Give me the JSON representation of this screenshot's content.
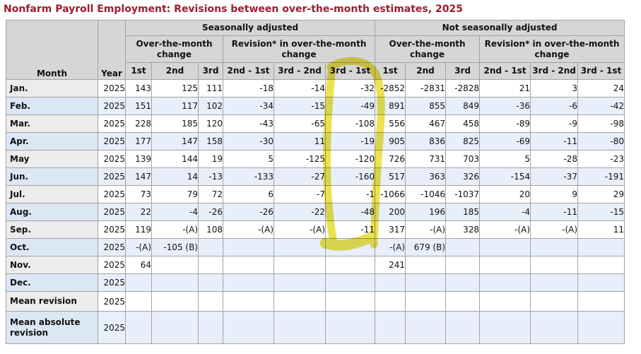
{
  "title": "Nonfarm Payroll Employment: Revisions between over-the-month estimates, 2025",
  "colors": {
    "title_text": "#9e1b32",
    "header_bg": "#d6d6d6",
    "stripe_blue": "#e8effb",
    "stripe_blue_label": "#dce7f6",
    "stripe_grey_label": "#ececec",
    "border": "#a2a2a2",
    "highlight_yellow": "#e7da25"
  },
  "table": {
    "group_headers": [
      {
        "label": "Seasonally adjusted"
      },
      {
        "label": "Not seasonally adjusted"
      }
    ],
    "subgroup_headers": [
      "Over-the-month change",
      "Revision* in over-the-month change",
      "Over-the-month change",
      "Revision* in over-the-month change"
    ],
    "column_headers": {
      "month": "Month",
      "year": "Year",
      "estimates": [
        "1st",
        "2nd",
        "3rd",
        "2nd - 1st",
        "3rd - 2nd",
        "3rd - 1st",
        "1st",
        "2nd",
        "3rd",
        "2nd - 1st",
        "3rd - 2nd",
        "3rd - 1st"
      ]
    },
    "rows": [
      {
        "month": "Jan.",
        "year": "2025",
        "values": [
          "143",
          "125",
          "111",
          "-18",
          "-14",
          "-32",
          "-2852",
          "-2831",
          "-2828",
          "21",
          "3",
          "24"
        ]
      },
      {
        "month": "Feb.",
        "year": "2025",
        "values": [
          "151",
          "117",
          "102",
          "-34",
          "-15",
          "-49",
          "891",
          "855",
          "849",
          "-36",
          "-6",
          "-42"
        ]
      },
      {
        "month": "Mar.",
        "year": "2025",
        "values": [
          "228",
          "185",
          "120",
          "-43",
          "-65",
          "-108",
          "556",
          "467",
          "458",
          "-89",
          "-9",
          "-98"
        ]
      },
      {
        "month": "Apr.",
        "year": "2025",
        "values": [
          "177",
          "147",
          "158",
          "-30",
          "11",
          "-19",
          "905",
          "836",
          "825",
          "-69",
          "-11",
          "-80"
        ]
      },
      {
        "month": "May",
        "year": "2025",
        "values": [
          "139",
          "144",
          "19",
          "5",
          "-125",
          "-120",
          "726",
          "731",
          "703",
          "5",
          "-28",
          "-23"
        ]
      },
      {
        "month": "Jun.",
        "year": "2025",
        "values": [
          "147",
          "14",
          "-13",
          "-133",
          "-27",
          "-160",
          "517",
          "363",
          "326",
          "-154",
          "-37",
          "-191"
        ]
      },
      {
        "month": "Jul.",
        "year": "2025",
        "values": [
          "73",
          "79",
          "72",
          "6",
          "-7",
          "-1",
          "-1066",
          "-1046",
          "-1037",
          "20",
          "9",
          "29"
        ]
      },
      {
        "month": "Aug.",
        "year": "2025",
        "values": [
          "22",
          "-4",
          "-26",
          "-26",
          "-22",
          "-48",
          "200",
          "196",
          "185",
          "-4",
          "-11",
          "-15"
        ]
      },
      {
        "month": "Sep.",
        "year": "2025",
        "values": [
          "119",
          "-(A)",
          "108",
          "-(A)",
          "-(A)",
          "-11",
          "317",
          "-(A)",
          "328",
          "-(A)",
          "-(A)",
          "11"
        ]
      },
      {
        "month": "Oct.",
        "year": "2025",
        "values": [
          "-(A)",
          "-105 (B)",
          "",
          "",
          "",
          "",
          "-(A)",
          "679 (B)",
          "",
          "",
          "",
          ""
        ]
      },
      {
        "month": "Nov.",
        "year": "2025",
        "values": [
          "64",
          "",
          "",
          "",
          "",
          "",
          "241",
          "",
          "",
          "",
          "",
          ""
        ]
      },
      {
        "month": "Dec.",
        "year": "2025",
        "values": [
          "",
          "",
          "",
          "",
          "",
          "",
          "",
          "",
          "",
          "",
          "",
          ""
        ]
      },
      {
        "month": "Mean revision",
        "year": "2025",
        "values": [
          "",
          "",
          "",
          "",
          "",
          "",
          "",
          "",
          "",
          "",
          "",
          ""
        ]
      },
      {
        "month": "Mean absolute revision",
        "year": "2025",
        "values": [
          "",
          "",
          "",
          "",
          "",
          "",
          "",
          "",
          "",
          "",
          "",
          ""
        ]
      }
    ],
    "annotation": {
      "type": "highlighter-circle",
      "target_column": "Seasonally adjusted 3rd - 1st"
    }
  }
}
